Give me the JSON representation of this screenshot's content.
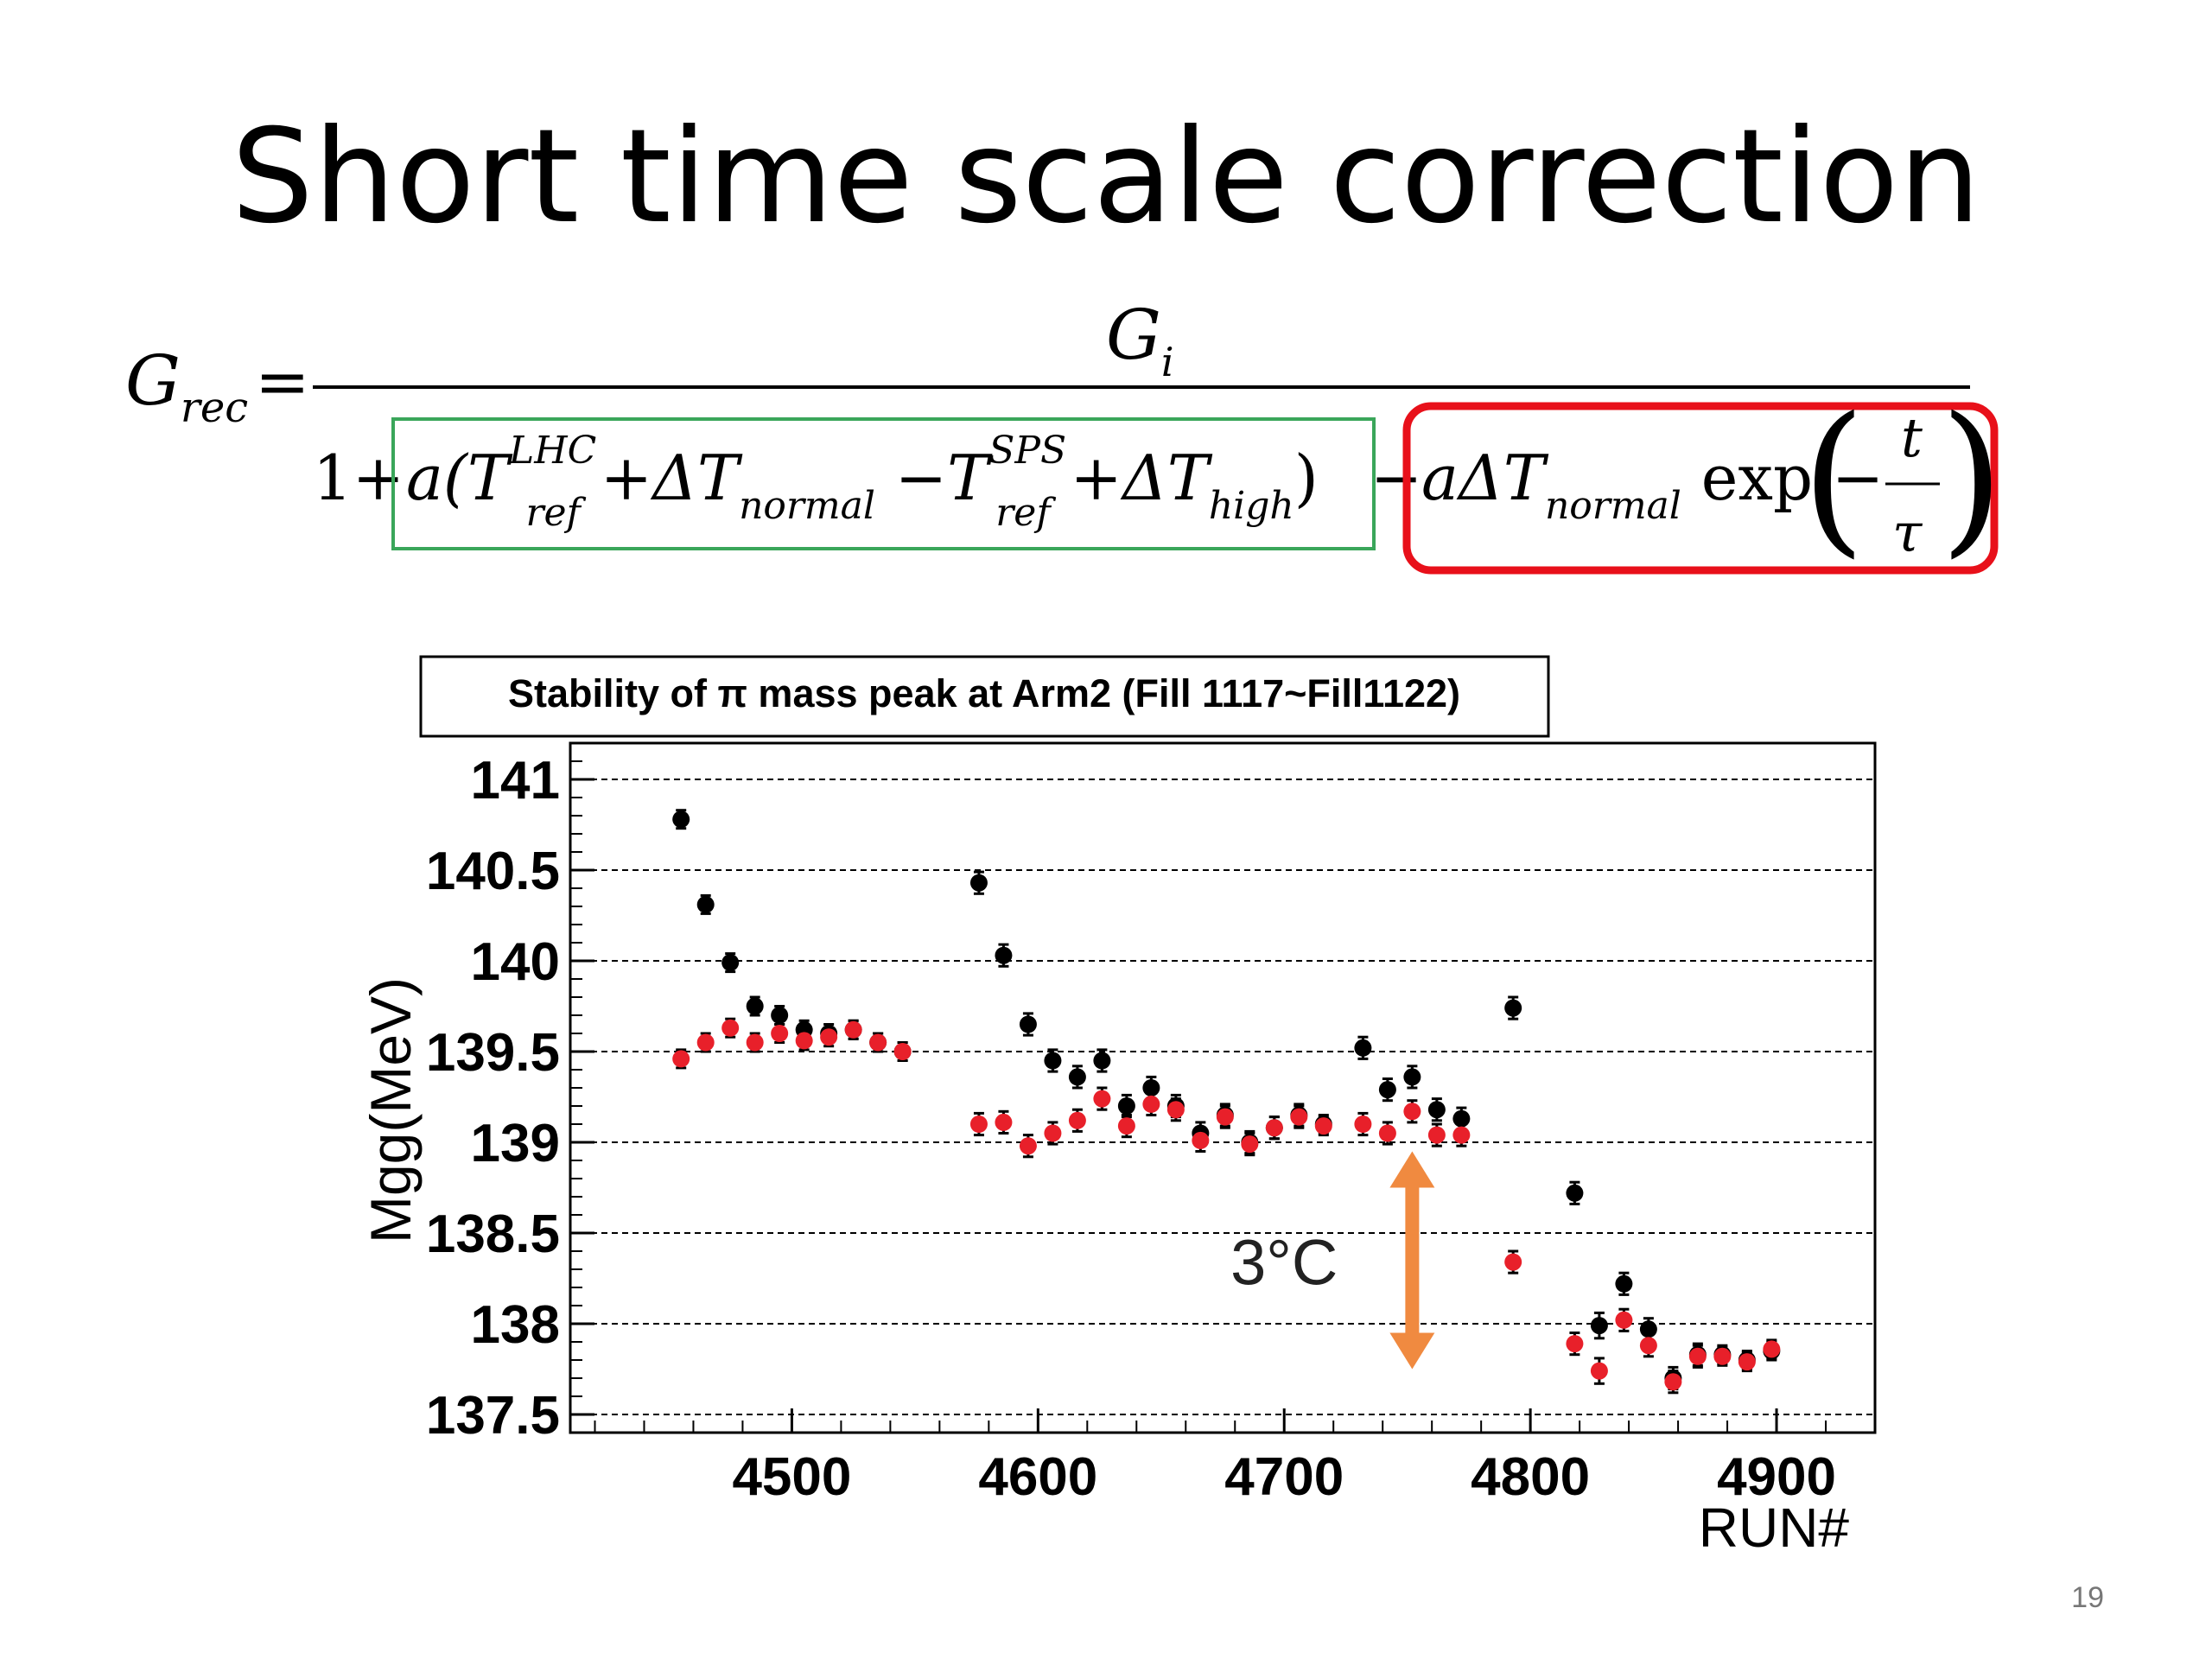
{
  "slide": {
    "title": "Short time scale correction",
    "page_number": "19"
  },
  "formula": {
    "lhs_base": "G",
    "lhs_sub": "rec",
    "equals": "=",
    "numerator_base": "G",
    "numerator_sub": "i",
    "one_plus": "1+",
    "green_box_color": "#3aa65a",
    "red_box_color": "#e8101a",
    "green_parts": [
      {
        "t": "a(T",
        "dy": 0,
        "size": 72,
        "italic": true
      },
      {
        "t": "LHC",
        "dy": -42,
        "size": 44,
        "italic": true
      },
      {
        "t": "ref",
        "dy": 30,
        "size": 44,
        "italic": true,
        "back": true
      },
      {
        "t": " +ΔT",
        "dy": 0,
        "size": 72,
        "italic": true
      },
      {
        "t": "normal",
        "dy": 22,
        "size": 44,
        "italic": true
      },
      {
        "t": " −T",
        "dy": 0,
        "size": 72,
        "italic": true
      },
      {
        "t": "SPS",
        "dy": -42,
        "size": 44,
        "italic": true
      },
      {
        "t": "ref",
        "dy": 30,
        "size": 44,
        "italic": true,
        "back": true
      },
      {
        "t": " +ΔT",
        "dy": 0,
        "size": 72,
        "italic": true
      },
      {
        "t": "high",
        "dy": 22,
        "size": 44,
        "italic": true
      },
      {
        "t": ")",
        "dy": 0,
        "size": 72,
        "italic": false
      }
    ],
    "minus": "−",
    "red_parts": [
      {
        "t": "aΔT",
        "dy": 0,
        "size": 72,
        "italic": true
      },
      {
        "t": "normal",
        "dy": 22,
        "size": 44,
        "italic": true
      },
      {
        "t": " exp",
        "dy": 0,
        "size": 72,
        "italic": false
      }
    ],
    "exp_minus": "−",
    "frac_num": "t",
    "frac_den": "τ"
  },
  "chart_data": {
    "type": "scatter",
    "title": "Stability of π mass peak at Arm2 (Fill 1117~Fill1122)",
    "xlabel": "RUN#",
    "ylabel": "Mgg(MeV)",
    "xlim": [
      4410,
      4940
    ],
    "ylim": [
      137.4,
      141.2
    ],
    "xticks": [
      4500,
      4600,
      4700,
      4800,
      4900
    ],
    "yticks": [
      137.5,
      138,
      138.5,
      139,
      139.5,
      140,
      140.5,
      141
    ],
    "ytick_labels": [
      "137.5",
      "138",
      "138.5",
      "139",
      "139.5",
      "140",
      "140.5",
      "141"
    ],
    "grid": "horizontal dashed",
    "series": [
      {
        "color": "#000000",
        "points": [
          [
            4455,
            140.78
          ],
          [
            4465,
            140.31
          ],
          [
            4475,
            139.99
          ],
          [
            4485,
            139.75
          ],
          [
            4495,
            139.7
          ],
          [
            4505,
            139.62
          ],
          [
            4515,
            139.6
          ],
          [
            4525,
            139.62
          ],
          [
            4535,
            139.55
          ],
          [
            4545,
            139.5
          ],
          [
            4576,
            140.43
          ],
          [
            4586,
            140.03
          ],
          [
            4596,
            139.65
          ],
          [
            4606,
            139.45
          ],
          [
            4616,
            139.36
          ],
          [
            4626,
            139.45
          ],
          [
            4636,
            139.2
          ],
          [
            4646,
            139.3
          ],
          [
            4656,
            139.2
          ],
          [
            4666,
            139.05
          ],
          [
            4676,
            139.15
          ],
          [
            4686,
            139.0
          ],
          [
            4696,
            139.08
          ],
          [
            4706,
            139.15
          ],
          [
            4716,
            139.1
          ],
          [
            4732,
            139.52
          ],
          [
            4742,
            139.29
          ],
          [
            4752,
            139.36
          ],
          [
            4762,
            139.18
          ],
          [
            4772,
            139.13
          ],
          [
            4793,
            139.74
          ],
          [
            4818,
            138.72
          ],
          [
            4828,
            137.99
          ],
          [
            4838,
            138.22
          ],
          [
            4848,
            137.97
          ],
          [
            4858,
            137.7
          ],
          [
            4868,
            137.83
          ],
          [
            4878,
            137.83
          ],
          [
            4888,
            137.8
          ],
          [
            4898,
            137.85
          ]
        ],
        "errors": [
          0.05,
          0.05,
          0.05,
          0.05,
          0.05,
          0.05,
          0.05,
          0.05,
          0.05,
          0.05,
          0.06,
          0.06,
          0.06,
          0.06,
          0.06,
          0.06,
          0.06,
          0.06,
          0.06,
          0.06,
          0.06,
          0.06,
          0.06,
          0.06,
          0.05,
          0.06,
          0.06,
          0.06,
          0.06,
          0.06,
          0.06,
          0.06,
          0.07,
          0.06,
          0.06,
          0.06,
          0.06,
          0.05,
          0.05,
          0.05
        ]
      },
      {
        "color": "#e8202a",
        "points": [
          [
            4455,
            139.46
          ],
          [
            4465,
            139.55
          ],
          [
            4475,
            139.63
          ],
          [
            4485,
            139.55
          ],
          [
            4495,
            139.6
          ],
          [
            4505,
            139.56
          ],
          [
            4515,
            139.58
          ],
          [
            4525,
            139.62
          ],
          [
            4535,
            139.55
          ],
          [
            4545,
            139.5
          ],
          [
            4576,
            139.1
          ],
          [
            4586,
            139.11
          ],
          [
            4596,
            138.98
          ],
          [
            4606,
            139.05
          ],
          [
            4616,
            139.12
          ],
          [
            4626,
            139.24
          ],
          [
            4636,
            139.09
          ],
          [
            4646,
            139.21
          ],
          [
            4656,
            139.18
          ],
          [
            4666,
            139.01
          ],
          [
            4676,
            139.14
          ],
          [
            4686,
            138.99
          ],
          [
            4696,
            139.08
          ],
          [
            4706,
            139.14
          ],
          [
            4716,
            139.09
          ],
          [
            4732,
            139.1
          ],
          [
            4742,
            139.05
          ],
          [
            4752,
            139.17
          ],
          [
            4762,
            139.04
          ],
          [
            4772,
            139.04
          ],
          [
            4793,
            138.34
          ],
          [
            4818,
            137.89
          ],
          [
            4828,
            137.74
          ],
          [
            4838,
            138.02
          ],
          [
            4848,
            137.88
          ],
          [
            4858,
            137.68
          ],
          [
            4868,
            137.82
          ],
          [
            4878,
            137.82
          ],
          [
            4888,
            137.79
          ],
          [
            4898,
            137.86
          ]
        ],
        "errors": [
          0.05,
          0.05,
          0.05,
          0.05,
          0.05,
          0.05,
          0.05,
          0.05,
          0.05,
          0.05,
          0.06,
          0.06,
          0.06,
          0.06,
          0.06,
          0.06,
          0.06,
          0.06,
          0.06,
          0.06,
          0.06,
          0.06,
          0.06,
          0.06,
          0.05,
          0.06,
          0.06,
          0.06,
          0.06,
          0.06,
          0.06,
          0.06,
          0.07,
          0.06,
          0.06,
          0.06,
          0.06,
          0.05,
          0.05,
          0.05
        ]
      }
    ],
    "annotation": {
      "text": "3°C",
      "arrow_color": "#f08a40",
      "arrow_x": 4752,
      "arrow_y_top": 138.95,
      "arrow_y_bottom": 137.75,
      "label_x": 4700,
      "label_y": 138.35
    }
  }
}
